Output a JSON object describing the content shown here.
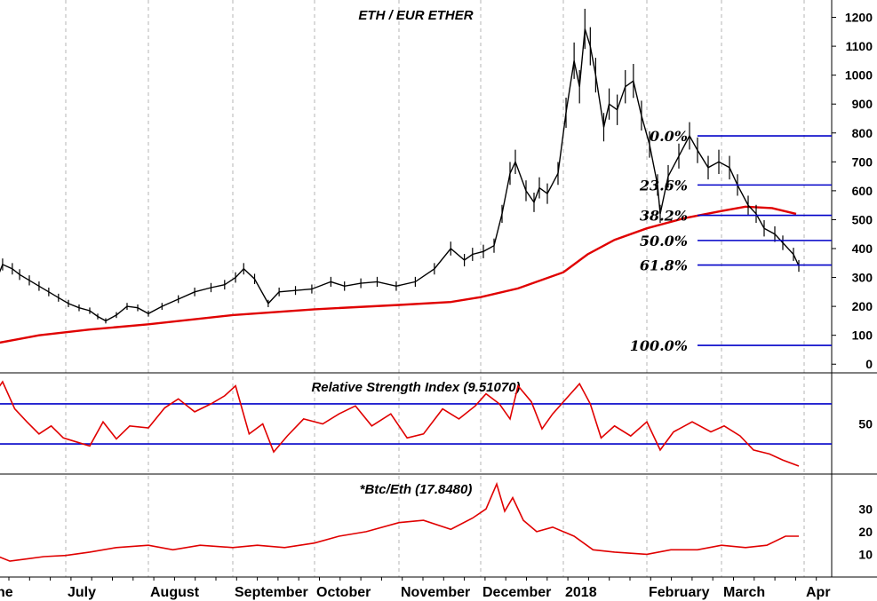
{
  "chart_data": [
    {
      "type": "candlestick",
      "title": "ETH / EUR ETHER",
      "ylim": [
        -30,
        1260
      ],
      "yticks": [
        0,
        100,
        200,
        300,
        400,
        500,
        600,
        700,
        800,
        900,
        1000,
        1100,
        1200
      ],
      "x_domain": [
        "2017-06-01",
        "2018-04-08"
      ],
      "price_series": {
        "name": "",
        "color": "#000000",
        "dates": [
          "2017-06-01",
          "2017-06-05",
          "2017-06-09",
          "2017-06-12",
          "2017-06-16",
          "2017-06-20",
          "2017-06-24",
          "2017-06-28",
          "2017-07-02",
          "2017-07-06",
          "2017-07-10",
          "2017-07-13",
          "2017-07-16",
          "2017-07-20",
          "2017-07-24",
          "2017-07-28",
          "2017-08-01",
          "2017-08-06",
          "2017-08-12",
          "2017-08-18",
          "2017-08-24",
          "2017-08-29",
          "2017-09-02",
          "2017-09-05",
          "2017-09-09",
          "2017-09-14",
          "2017-09-18",
          "2017-09-24",
          "2017-09-30",
          "2017-10-07",
          "2017-10-12",
          "2017-10-18",
          "2017-10-24",
          "2017-10-31",
          "2017-11-07",
          "2017-11-14",
          "2017-11-20",
          "2017-11-25",
          "2017-11-28",
          "2017-12-02",
          "2017-12-06",
          "2017-12-09",
          "2017-12-12",
          "2017-12-14",
          "2017-12-18",
          "2017-12-21",
          "2017-12-23",
          "2017-12-26",
          "2017-12-30",
          "2018-01-02",
          "2018-01-05",
          "2018-01-07",
          "2018-01-09",
          "2018-01-11",
          "2018-01-13",
          "2018-01-16",
          "2018-01-18",
          "2018-01-21",
          "2018-01-24",
          "2018-01-27",
          "2018-01-30",
          "2018-02-02",
          "2018-02-05",
          "2018-02-06",
          "2018-02-09",
          "2018-02-13",
          "2018-02-17",
          "2018-02-20",
          "2018-02-24",
          "2018-02-28",
          "2018-03-04",
          "2018-03-07",
          "2018-03-11",
          "2018-03-14",
          "2018-03-17",
          "2018-03-21",
          "2018-03-24",
          "2018-03-28",
          "2018-03-30"
        ],
        "close": [
          260,
          345,
          330,
          310,
          290,
          270,
          250,
          230,
          210,
          195,
          185,
          165,
          150,
          170,
          200,
          195,
          175,
          200,
          225,
          250,
          265,
          275,
          300,
          330,
          295,
          210,
          250,
          255,
          260,
          285,
          270,
          280,
          285,
          270,
          285,
          330,
          400,
          360,
          380,
          390,
          410,
          520,
          660,
          700,
          600,
          560,
          610,
          590,
          660,
          870,
          1050,
          960,
          1160,
          1100,
          1000,
          820,
          900,
          880,
          960,
          980,
          860,
          760,
          620,
          520,
          650,
          720,
          790,
          740,
          680,
          700,
          680,
          620,
          550,
          520,
          470,
          450,
          420,
          380,
          340
        ]
      },
      "moving_average": {
        "color": "#e00000",
        "dates": [
          "2017-06-01",
          "2017-06-20",
          "2017-07-10",
          "2017-08-01",
          "2017-09-01",
          "2017-10-01",
          "2017-11-01",
          "2017-11-20",
          "2017-12-01",
          "2017-12-15",
          "2018-01-01",
          "2018-01-10",
          "2018-01-20",
          "2018-02-01",
          "2018-02-15",
          "2018-03-01",
          "2018-03-10",
          "2018-03-20",
          "2018-03-29"
        ],
        "values": [
          70,
          100,
          120,
          138,
          170,
          190,
          205,
          215,
          232,
          262,
          318,
          380,
          430,
          470,
          505,
          530,
          545,
          540,
          520
        ]
      },
      "fibonacci_levels": [
        {
          "label": "0.0%",
          "value": 790
        },
        {
          "label": "23.6%",
          "value": 620
        },
        {
          "label": "38.2%",
          "value": 515
        },
        {
          "label": "50.0%",
          "value": 428
        },
        {
          "label": "61.8%",
          "value": 343
        },
        {
          "label": "100.0%",
          "value": 65
        }
      ],
      "fib_color": "#0000c8"
    },
    {
      "type": "line",
      "title": "Relative Strength Index (9.51070)",
      "ylim": [
        0,
        100
      ],
      "yticks": [
        50
      ],
      "reference_lines": [
        30,
        70
      ],
      "reference_color": "#0000c8",
      "series": [
        {
          "name": "",
          "color": "#e00000",
          "dates": [
            "2017-06-01",
            "2017-06-05",
            "2017-06-10",
            "2017-06-15",
            "2017-06-20",
            "2017-06-25",
            "2017-06-30",
            "2017-07-05",
            "2017-07-10",
            "2017-07-15",
            "2017-07-20",
            "2017-07-25",
            "2017-08-01",
            "2017-08-07",
            "2017-08-12",
            "2017-08-18",
            "2017-08-24",
            "2017-08-29",
            "2017-09-02",
            "2017-09-07",
            "2017-09-12",
            "2017-09-16",
            "2017-09-21",
            "2017-09-27",
            "2017-10-04",
            "2017-10-10",
            "2017-10-16",
            "2017-10-22",
            "2017-10-29",
            "2017-11-04",
            "2017-11-10",
            "2017-11-17",
            "2017-11-23",
            "2017-11-29",
            "2017-12-03",
            "2017-12-08",
            "2017-12-12",
            "2017-12-15",
            "2017-12-20",
            "2017-12-24",
            "2017-12-28",
            "2018-01-03",
            "2018-01-07",
            "2018-01-11",
            "2018-01-15",
            "2018-01-20",
            "2018-01-26",
            "2018-02-01",
            "2018-02-06",
            "2018-02-11",
            "2018-02-18",
            "2018-02-25",
            "2018-03-02",
            "2018-03-08",
            "2018-03-13",
            "2018-03-19",
            "2018-03-24",
            "2018-03-30"
          ],
          "values": [
            78,
            92,
            65,
            52,
            40,
            48,
            36,
            32,
            28,
            52,
            35,
            48,
            46,
            66,
            75,
            62,
            70,
            78,
            88,
            40,
            50,
            22,
            38,
            55,
            50,
            60,
            68,
            48,
            60,
            36,
            40,
            65,
            55,
            68,
            80,
            70,
            55,
            88,
            72,
            45,
            60,
            78,
            90,
            70,
            36,
            48,
            38,
            52,
            24,
            42,
            52,
            42,
            48,
            38,
            24,
            20,
            14,
            8
          ]
        }
      ]
    },
    {
      "type": "line",
      "title": "*Btc/Eth (17.8480)",
      "ylim": [
        0,
        45
      ],
      "yticks": [
        10,
        20,
        30
      ],
      "series": [
        {
          "name": "",
          "color": "#e00000",
          "dates": [
            "2017-06-01",
            "2017-06-08",
            "2017-06-15",
            "2017-06-22",
            "2017-07-01",
            "2017-07-10",
            "2017-07-20",
            "2017-08-01",
            "2017-08-10",
            "2017-08-20",
            "2017-09-01",
            "2017-09-10",
            "2017-09-20",
            "2017-10-01",
            "2017-10-10",
            "2017-10-20",
            "2017-11-01",
            "2017-11-10",
            "2017-11-20",
            "2017-11-28",
            "2017-12-03",
            "2017-12-07",
            "2017-12-10",
            "2017-12-13",
            "2017-12-17",
            "2017-12-22",
            "2017-12-28",
            "2018-01-05",
            "2018-01-12",
            "2018-01-20",
            "2018-02-01",
            "2018-02-10",
            "2018-02-20",
            "2018-03-01",
            "2018-03-10",
            "2018-03-18",
            "2018-03-25",
            "2018-03-30"
          ],
          "values": [
            10,
            7,
            8,
            9,
            9.5,
            11,
            13,
            14,
            12,
            14,
            13,
            14,
            13,
            15,
            18,
            20,
            24,
            25,
            21,
            26,
            30,
            41,
            29,
            35,
            25,
            20,
            22,
            18,
            12,
            11,
            10,
            12,
            12,
            14,
            13,
            14,
            18,
            18
          ]
        }
      ]
    }
  ],
  "months": [
    {
      "label": "ne",
      "date": "2017-06-01"
    },
    {
      "label": "July",
      "date": "2017-07-01"
    },
    {
      "label": "August",
      "date": "2017-08-01"
    },
    {
      "label": "September",
      "date": "2017-09-01"
    },
    {
      "label": "October",
      "date": "2017-10-01"
    },
    {
      "label": "November",
      "date": "2017-11-01"
    },
    {
      "label": "December",
      "date": "2017-12-01"
    },
    {
      "label": "2018",
      "date": "2018-01-01"
    },
    {
      "label": "February",
      "date": "2018-02-01"
    },
    {
      "label": "March",
      "date": "2018-03-01"
    },
    {
      "label": "Apr",
      "date": "2018-04-01"
    }
  ],
  "gridlines_vertical": true
}
